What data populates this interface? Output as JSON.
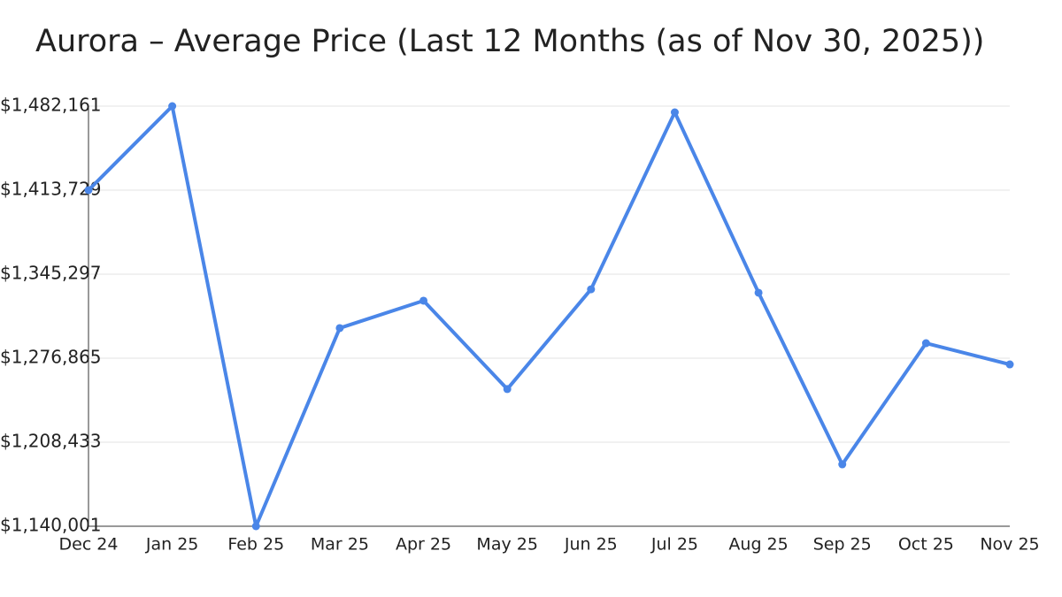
{
  "chart_data": {
    "type": "line",
    "title": "Aurora – Average Price (Last 12 Months (as of Nov 30, 2025))",
    "categories": [
      "Dec 24",
      "Jan 25",
      "Feb 25",
      "Mar 25",
      "Apr 25",
      "May 25",
      "Jun 25",
      "Jul 25",
      "Aug 25",
      "Sep 25",
      "Oct 25",
      "Nov 25"
    ],
    "series": [
      {
        "name": "Average Price",
        "color": "#4a86e8",
        "values": [
          1413729,
          1482161,
          1140001,
          1301400,
          1323700,
          1251700,
          1333000,
          1477100,
          1330200,
          1190400,
          1289100,
          1271800
        ]
      }
    ],
    "ylim": [
      1140001,
      1482161
    ],
    "yticks": [
      {
        "value": 1140001,
        "label": "$1,140,001"
      },
      {
        "value": 1208433,
        "label": "$1,208,433"
      },
      {
        "value": 1276865,
        "label": "$1,276,865"
      },
      {
        "value": 1345297,
        "label": "$1,345,297"
      },
      {
        "value": 1413729,
        "label": "$1,413,729"
      },
      {
        "value": 1482161,
        "label": "$1,482,161"
      }
    ],
    "grid": true
  }
}
